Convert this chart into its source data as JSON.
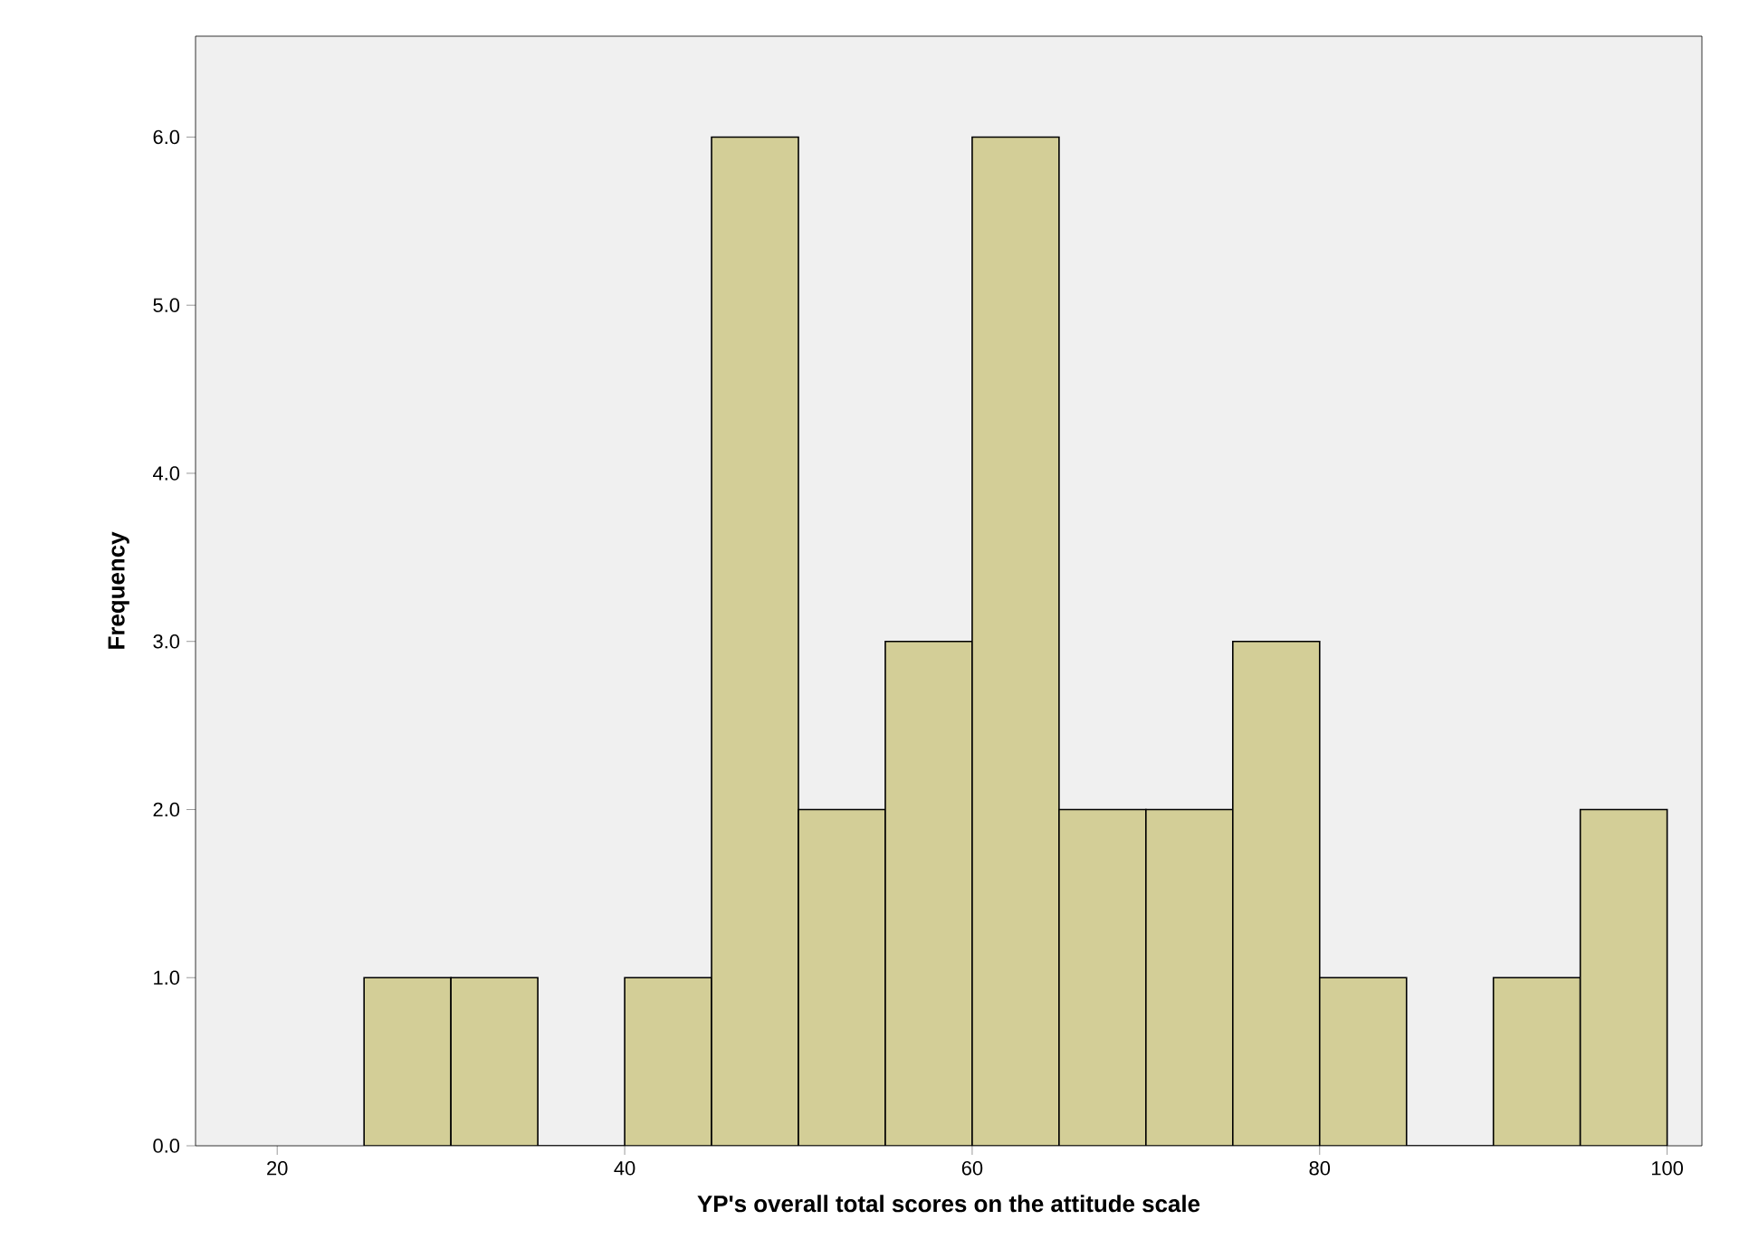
{
  "chart_data": {
    "type": "histogram",
    "xlabel": "YP's overall total scores on the attitude scale",
    "ylabel": "Frequency",
    "bins": [
      25,
      30,
      35,
      40,
      45,
      50,
      55,
      60,
      65,
      70,
      75,
      80,
      85,
      90,
      95,
      100
    ],
    "values": [
      1,
      1,
      0,
      1,
      6,
      2,
      3,
      6,
      2,
      2,
      3,
      1,
      0,
      1,
      2
    ],
    "color": "#d3ce97",
    "xlim": [
      15.3,
      102
    ],
    "ylim": [
      0,
      6.6
    ],
    "xticks": [
      20,
      40,
      60,
      80,
      100
    ],
    "yticks": [
      {
        "value": 0,
        "label": "0.0"
      },
      {
        "value": 1,
        "label": "1.0"
      },
      {
        "value": 2,
        "label": "2.0"
      },
      {
        "value": 3,
        "label": "3.0"
      },
      {
        "value": 4,
        "label": "4.0"
      },
      {
        "value": 5,
        "label": "5.0"
      },
      {
        "value": 6,
        "label": "6.0"
      }
    ],
    "grid": false
  }
}
